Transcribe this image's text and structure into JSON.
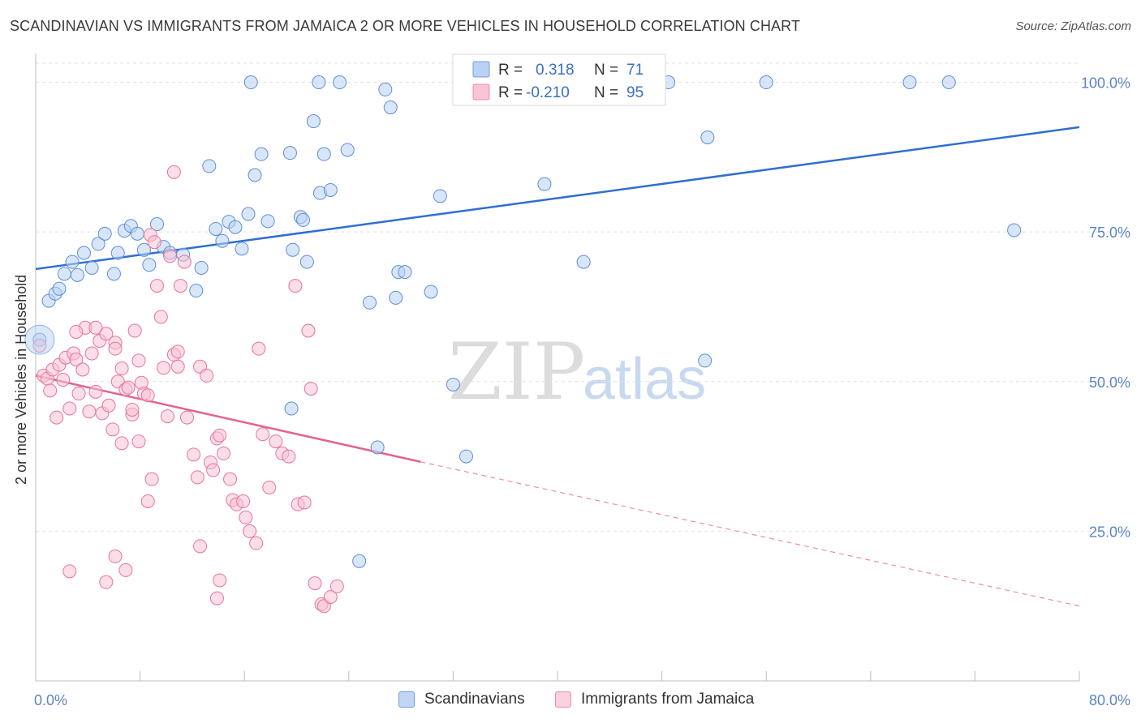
{
  "title": "SCANDINAVIAN VS IMMIGRANTS FROM JAMAICA 2 OR MORE VEHICLES IN HOUSEHOLD CORRELATION CHART",
  "source": "Source: ZipAtlas.com",
  "watermark": {
    "zip": "ZIP",
    "atlas": "atlas"
  },
  "legend_box": {
    "rows": [
      {
        "r_label": "R =",
        "r_value": "0.318",
        "n_label": "N =",
        "n_value": "71",
        "color": "#6f9fe0",
        "fill": "#b9d1f3"
      },
      {
        "r_label": "R =",
        "r_value": "-0.210",
        "n_label": "N =",
        "n_value": "95",
        "color": "#ec8cad",
        "fill": "#f8c3d4"
      }
    ]
  },
  "bottom_legend": [
    {
      "label": "Scandinavians",
      "color": "#6f9fe0",
      "fill": "#c2d6f3"
    },
    {
      "label": "Immigrants from Jamaica",
      "color": "#ec8cad",
      "fill": "#fbd0dd"
    }
  ],
  "chart_data": {
    "type": "scatter",
    "title": "SCANDINAVIAN VS IMMIGRANTS FROM JAMAICA 2 OR MORE VEHICLES IN HOUSEHOLD CORRELATION CHART",
    "xlabel": "",
    "ylabel": "2 or more Vehicles in Household",
    "x_tick_labels": [
      "0.0%",
      "80.0%"
    ],
    "y_tick_labels": [
      "25.0%",
      "50.0%",
      "75.0%",
      "100.0%"
    ],
    "xlim": [
      0,
      80
    ],
    "ylim": [
      0,
      104
    ],
    "grid": true,
    "legend_position": "top-center",
    "series": [
      {
        "name": "Scandinavians",
        "color": "#5b8fd9",
        "fill": "#b9d1f3",
        "trend": {
          "x": [
            0,
            80
          ],
          "y": [
            68.8,
            92.5
          ],
          "style": "solid"
        },
        "points": [
          [
            0.3,
            57
          ],
          [
            1,
            63.5
          ],
          [
            1.5,
            64.7
          ],
          [
            1.8,
            65.5
          ],
          [
            2.2,
            68
          ],
          [
            2.8,
            70
          ],
          [
            3.2,
            67.8
          ],
          [
            3.7,
            71.5
          ],
          [
            4.3,
            69
          ],
          [
            4.8,
            73
          ],
          [
            5.3,
            74.7
          ],
          [
            6,
            68
          ],
          [
            6.3,
            71.5
          ],
          [
            6.8,
            75.2
          ],
          [
            7.3,
            76
          ],
          [
            7.8,
            74.7
          ],
          [
            8.3,
            72
          ],
          [
            8.7,
            69.5
          ],
          [
            9.3,
            76.3
          ],
          [
            9.8,
            72.5
          ],
          [
            10.3,
            71.5
          ],
          [
            11.3,
            71.2
          ],
          [
            12.3,
            65.2
          ],
          [
            12.7,
            69
          ],
          [
            13.3,
            86
          ],
          [
            13.8,
            75.5
          ],
          [
            14.3,
            73.5
          ],
          [
            14.8,
            76.7
          ],
          [
            15.3,
            75.8
          ],
          [
            15.8,
            72.2
          ],
          [
            16.3,
            78
          ],
          [
            16.8,
            84.5
          ],
          [
            17.3,
            88
          ],
          [
            17.8,
            76.8
          ],
          [
            19.5,
            88.2
          ],
          [
            19.7,
            72
          ],
          [
            20.3,
            77.5
          ],
          [
            20.5,
            77
          ],
          [
            20.8,
            70
          ],
          [
            21.3,
            93.5
          ],
          [
            21.8,
            81.5
          ],
          [
            22.1,
            88
          ],
          [
            22.6,
            82
          ],
          [
            23.3,
            100
          ],
          [
            23.9,
            88.7
          ],
          [
            25.6,
            63.2
          ],
          [
            26.2,
            39
          ],
          [
            26.8,
            98.8
          ],
          [
            27.2,
            95.8
          ],
          [
            27.6,
            64
          ],
          [
            27.8,
            68.3
          ],
          [
            28.3,
            68.3
          ],
          [
            30.3,
            65
          ],
          [
            31,
            81
          ],
          [
            32,
            49.5
          ],
          [
            33,
            37.5
          ],
          [
            37.6,
            100
          ],
          [
            39,
            83
          ],
          [
            42,
            70
          ],
          [
            46,
            100
          ],
          [
            48.5,
            100
          ],
          [
            51.3,
            53.5
          ],
          [
            51.5,
            90.8
          ],
          [
            56,
            100
          ],
          [
            67,
            100
          ],
          [
            70,
            100
          ],
          [
            75,
            75.3
          ],
          [
            24.8,
            20
          ],
          [
            19.6,
            45.5
          ],
          [
            16.5,
            100
          ],
          [
            21.7,
            100
          ]
        ]
      },
      {
        "name": "Immigrants from Jamaica",
        "color": "#e8739c",
        "fill": "#f8c3d4",
        "trend": {
          "x": [
            0,
            29.5
          ],
          "y": [
            51,
            36.6
          ],
          "style": "solid"
        },
        "trend_dashed": {
          "x": [
            29.5,
            80
          ],
          "y": [
            36.6,
            12.5
          ]
        },
        "points": [
          [
            0.3,
            56
          ],
          [
            0.6,
            51
          ],
          [
            0.9,
            50.5
          ],
          [
            1.1,
            48.5
          ],
          [
            1.3,
            52
          ],
          [
            1.6,
            44
          ],
          [
            1.8,
            52.8
          ],
          [
            2.1,
            50.3
          ],
          [
            2.3,
            54
          ],
          [
            2.6,
            45.5
          ],
          [
            2.9,
            54.7
          ],
          [
            3.1,
            53.7
          ],
          [
            3.3,
            48
          ],
          [
            3.6,
            52
          ],
          [
            3.8,
            59
          ],
          [
            4.1,
            45
          ],
          [
            4.3,
            54.7
          ],
          [
            4.6,
            48.3
          ],
          [
            4.9,
            56.8
          ],
          [
            5.1,
            44.7
          ],
          [
            5.4,
            58
          ],
          [
            5.6,
            46
          ],
          [
            5.9,
            42
          ],
          [
            6.1,
            56.5
          ],
          [
            6.3,
            50
          ],
          [
            6.6,
            52.2
          ],
          [
            6.9,
            48.7
          ],
          [
            7.1,
            49
          ],
          [
            7.4,
            44.5
          ],
          [
            7.6,
            58.5
          ],
          [
            7.9,
            53.5
          ],
          [
            8.1,
            49.8
          ],
          [
            8.3,
            48
          ],
          [
            8.6,
            47.7
          ],
          [
            8.8,
            74.5
          ],
          [
            9.1,
            73.3
          ],
          [
            9.3,
            66
          ],
          [
            9.6,
            60.8
          ],
          [
            9.8,
            52.3
          ],
          [
            10.1,
            44.2
          ],
          [
            10.3,
            71
          ],
          [
            10.6,
            54.5
          ],
          [
            10.9,
            52.5
          ],
          [
            11.1,
            66
          ],
          [
            11.4,
            70
          ],
          [
            11.6,
            44
          ],
          [
            12.1,
            37.8
          ],
          [
            12.4,
            34
          ],
          [
            12.6,
            52.5
          ],
          [
            13.1,
            51
          ],
          [
            13.4,
            36.5
          ],
          [
            13.6,
            35.2
          ],
          [
            13.9,
            40.5
          ],
          [
            14.1,
            41
          ],
          [
            14.4,
            38
          ],
          [
            14.9,
            33.7
          ],
          [
            15.1,
            30.2
          ],
          [
            15.4,
            29.5
          ],
          [
            15.9,
            30
          ],
          [
            16.1,
            27.3
          ],
          [
            16.4,
            25
          ],
          [
            16.9,
            23
          ],
          [
            17.1,
            55.5
          ],
          [
            17.4,
            41.2
          ],
          [
            17.9,
            32.3
          ],
          [
            18.4,
            40
          ],
          [
            18.9,
            38
          ],
          [
            19.4,
            37.5
          ],
          [
            19.9,
            66
          ],
          [
            20.1,
            29.5
          ],
          [
            20.6,
            29.8
          ],
          [
            20.9,
            58.5
          ],
          [
            21.1,
            48.8
          ],
          [
            21.4,
            16.3
          ],
          [
            21.9,
            12.8
          ],
          [
            22.1,
            12.5
          ],
          [
            22.6,
            14
          ],
          [
            23.1,
            15.8
          ],
          [
            6.1,
            20.8
          ],
          [
            6.9,
            18.5
          ],
          [
            5.4,
            16.5
          ],
          [
            8.6,
            30
          ],
          [
            8.9,
            33.7
          ],
          [
            2.6,
            18.3
          ],
          [
            10.6,
            85
          ],
          [
            6.6,
            39.7
          ],
          [
            7.4,
            45.3
          ],
          [
            7.9,
            40
          ],
          [
            10.9,
            55
          ],
          [
            12.6,
            22.5
          ],
          [
            13.9,
            13.8
          ],
          [
            14.1,
            16.8
          ],
          [
            4.6,
            59
          ],
          [
            3.1,
            58.3
          ],
          [
            6.1,
            55.5
          ]
        ]
      }
    ]
  }
}
